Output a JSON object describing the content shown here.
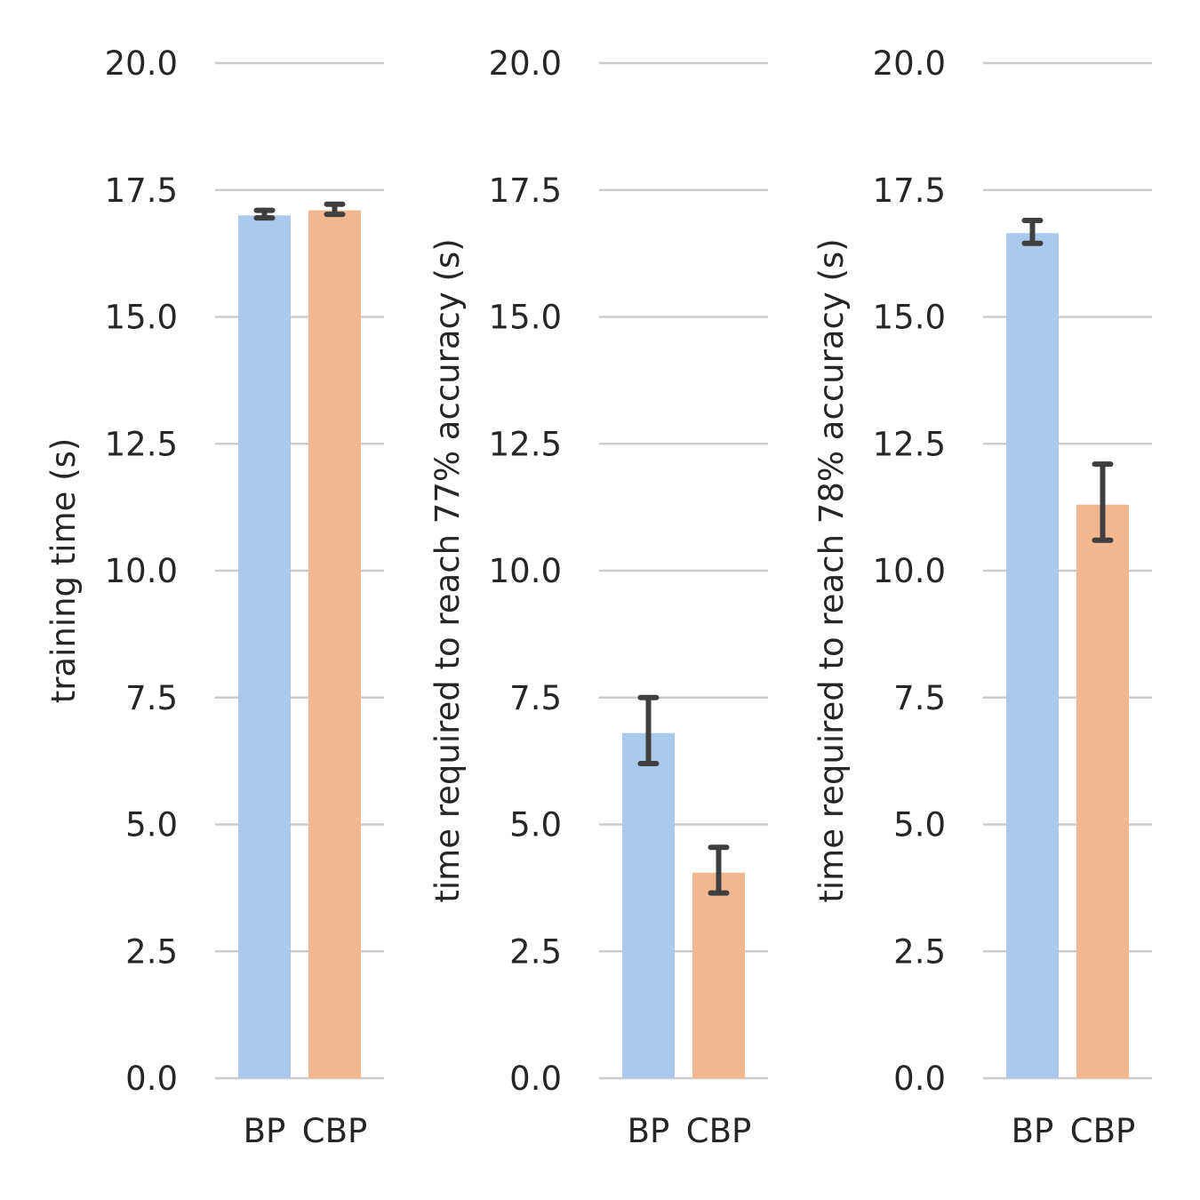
{
  "chart_data": [
    {
      "type": "bar",
      "categories": [
        "BP",
        "CBP"
      ],
      "values": [
        17.0,
        17.1
      ],
      "error_bars": [
        [
          16.95,
          17.1
        ],
        [
          17.02,
          17.22
        ]
      ],
      "ylabel": "training time (s)",
      "ylim": [
        0,
        20
      ],
      "yticks": [
        "0.0",
        "2.5",
        "5.0",
        "7.5",
        "10.0",
        "12.5",
        "15.0",
        "17.5",
        "20.0"
      ],
      "grid": true,
      "colors": [
        "#abc9ec",
        "#f1b890"
      ]
    },
    {
      "type": "bar",
      "categories": [
        "BP",
        "CBP"
      ],
      "values": [
        6.8,
        4.05
      ],
      "error_bars": [
        [
          6.2,
          7.5
        ],
        [
          3.65,
          4.55
        ]
      ],
      "ylabel": "time required to reach 77% accuracy (s)",
      "ylim": [
        0,
        20
      ],
      "yticks": [
        "0.0",
        "2.5",
        "5.0",
        "7.5",
        "10.0",
        "12.5",
        "15.0",
        "17.5",
        "20.0"
      ],
      "grid": true,
      "colors": [
        "#abc9ec",
        "#f1b890"
      ]
    },
    {
      "type": "bar",
      "categories": [
        "BP",
        "CBP"
      ],
      "values": [
        16.65,
        11.3
      ],
      "error_bars": [
        [
          16.45,
          16.9
        ],
        [
          10.6,
          12.1
        ]
      ],
      "ylabel": "time required to reach 78% accuracy (s)",
      "ylim": [
        0,
        20
      ],
      "yticks": [
        "0.0",
        "2.5",
        "5.0",
        "7.5",
        "10.0",
        "12.5",
        "15.0",
        "17.5",
        "20.0"
      ],
      "grid": true,
      "colors": [
        "#abc9ec",
        "#f1b890"
      ]
    }
  ]
}
